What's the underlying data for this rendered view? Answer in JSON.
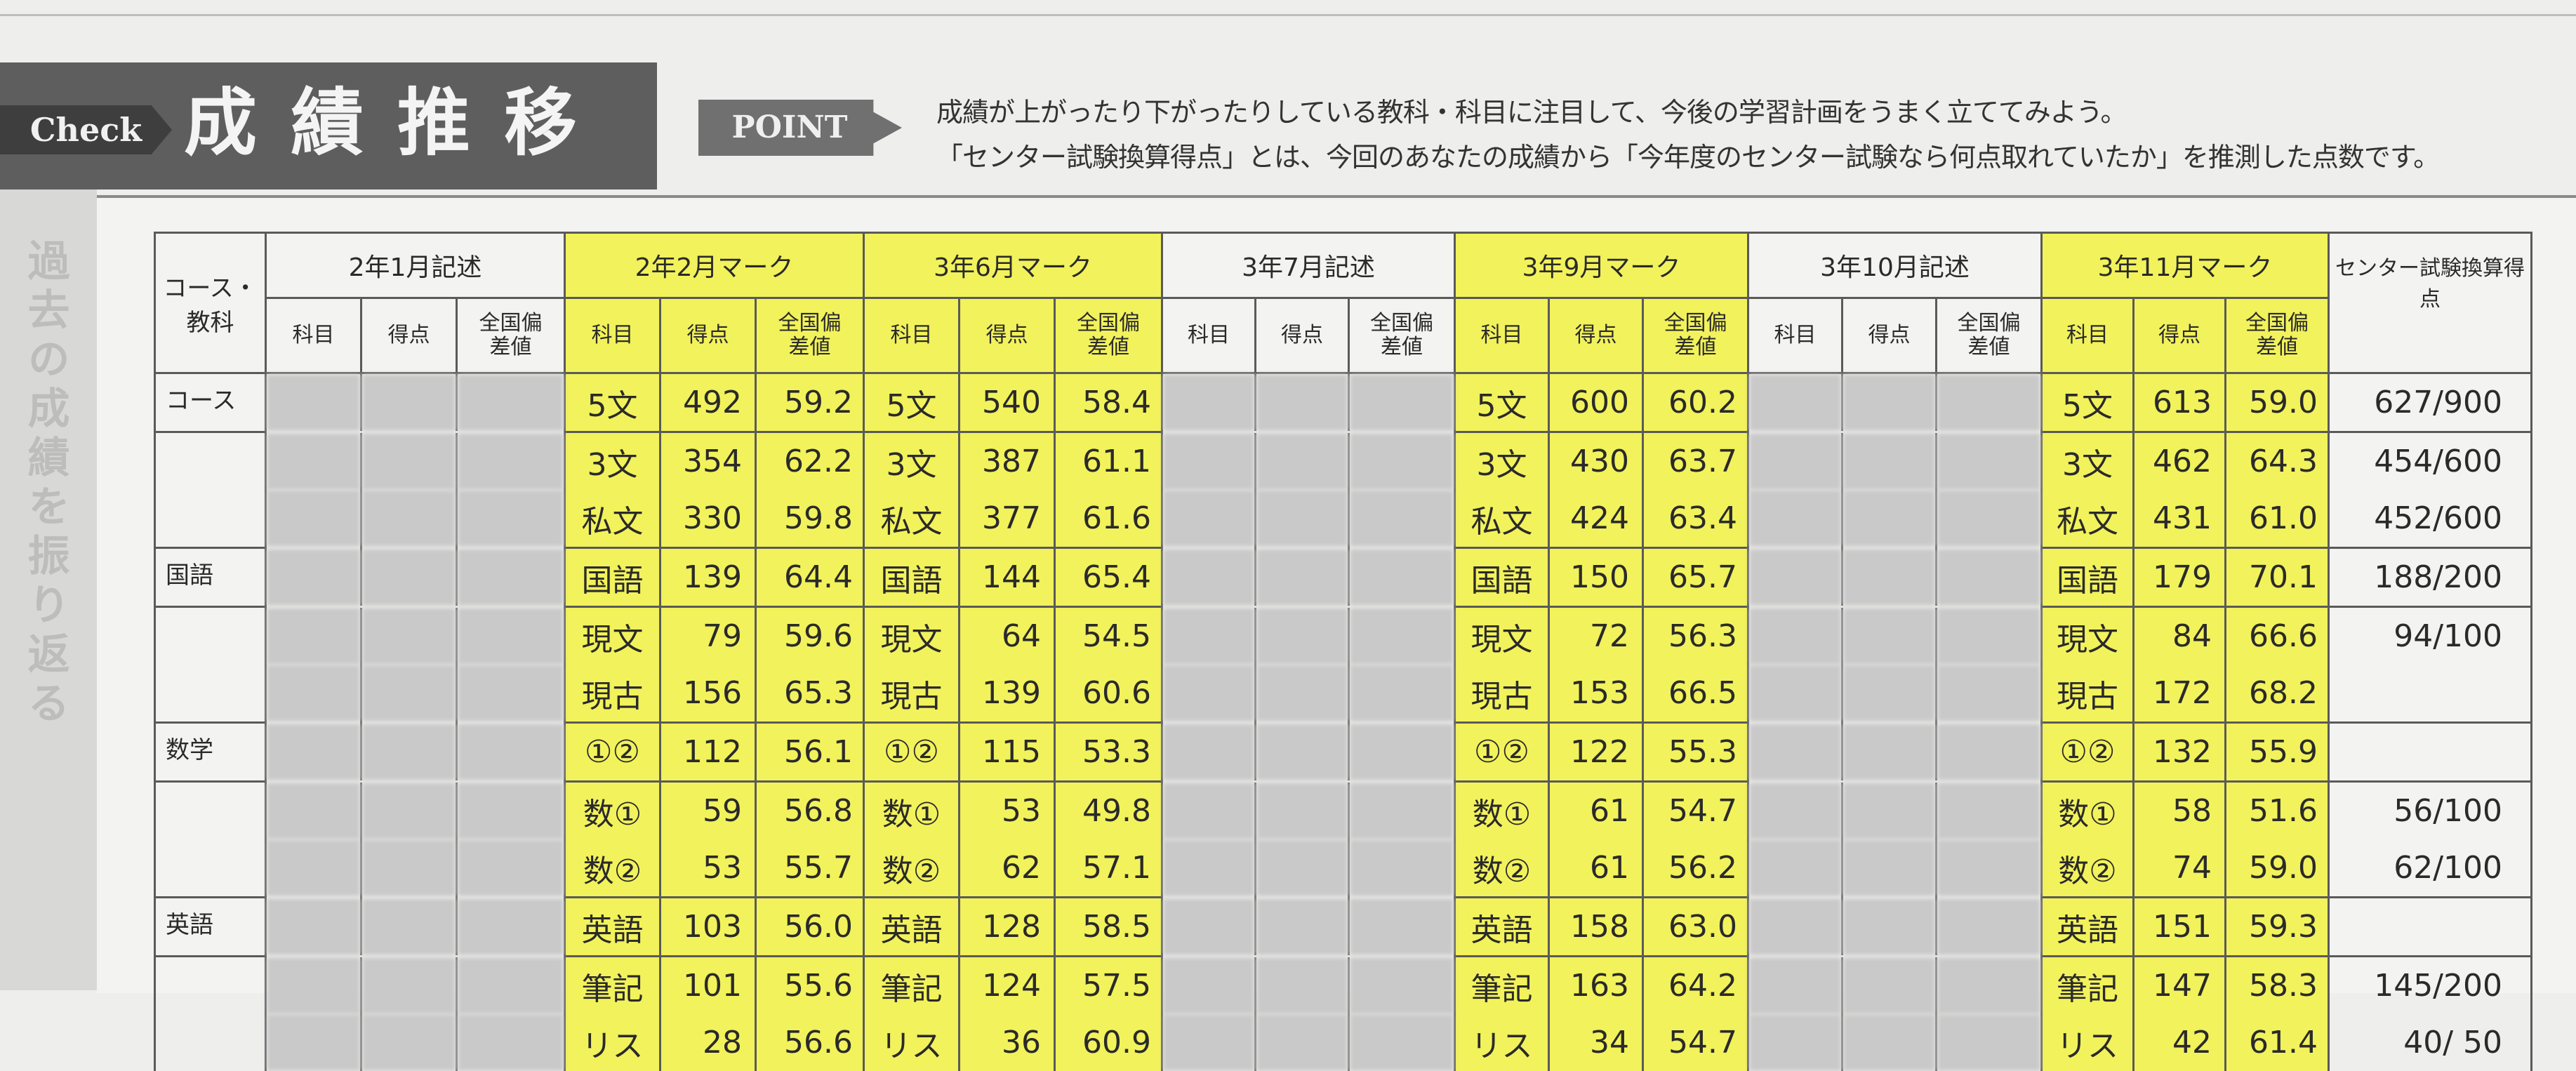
{
  "header": {
    "check_label": "Check",
    "title": "成績推移",
    "point_label": "POINT",
    "point_lines": [
      "成績が上がったり下がったりしている教科・科目に注目して、今後の学習計画をうまく立ててみよう。",
      "「センター試験換算得点」とは、今回のあなたの成績から「今年度のセンター試験なら何点取れていたか」を推測した点数です。"
    ]
  },
  "side_label": "過去の成績を振り返る",
  "colors": {
    "highlight": "#f2f25c",
    "band": "#5e5e5e",
    "paper": "#f3f3f1"
  },
  "table": {
    "course_header": "コース・教科",
    "sub_headers": [
      "科目",
      "得点",
      "全国偏差値"
    ],
    "center_header": "センター試験換算得点",
    "course_labels": [
      "コース",
      "",
      "",
      "国語",
      "",
      "",
      "数学",
      "",
      "",
      "英語",
      "",
      ""
    ],
    "groups": [
      {
        "title": "2年1月記述",
        "highlighted": false,
        "redacted": true,
        "rows": []
      },
      {
        "title": "2年2月マーク",
        "highlighted": true,
        "redacted": false,
        "rows": [
          [
            "5文",
            "492",
            "59.2"
          ],
          [
            "3文",
            "354",
            "62.2"
          ],
          [
            "私文",
            "330",
            "59.8"
          ],
          [
            "国語",
            "139",
            "64.4"
          ],
          [
            "現文",
            "79",
            "59.6"
          ],
          [
            "現古",
            "156",
            "65.3"
          ],
          [
            "①②",
            "112",
            "56.1"
          ],
          [
            "数①",
            "59",
            "56.8"
          ],
          [
            "数②",
            "53",
            "55.7"
          ],
          [
            "英語",
            "103",
            "56.0"
          ],
          [
            "筆記",
            "101",
            "55.6"
          ],
          [
            "リス",
            "28",
            "56.6"
          ]
        ]
      },
      {
        "title": "3年6月マーク",
        "highlighted": true,
        "redacted": false,
        "rows": [
          [
            "5文",
            "540",
            "58.4"
          ],
          [
            "3文",
            "387",
            "61.1"
          ],
          [
            "私文",
            "377",
            "61.6"
          ],
          [
            "国語",
            "144",
            "65.4"
          ],
          [
            "現文",
            "64",
            "54.5"
          ],
          [
            "現古",
            "139",
            "60.6"
          ],
          [
            "①②",
            "115",
            "53.3"
          ],
          [
            "数①",
            "53",
            "49.8"
          ],
          [
            "数②",
            "62",
            "57.1"
          ],
          [
            "英語",
            "128",
            "58.5"
          ],
          [
            "筆記",
            "124",
            "57.5"
          ],
          [
            "リス",
            "36",
            "60.9"
          ]
        ]
      },
      {
        "title": "3年7月記述",
        "highlighted": false,
        "redacted": true,
        "rows": []
      },
      {
        "title": "3年9月マーク",
        "highlighted": true,
        "redacted": false,
        "rows": [
          [
            "5文",
            "600",
            "60.2"
          ],
          [
            "3文",
            "430",
            "63.7"
          ],
          [
            "私文",
            "424",
            "63.4"
          ],
          [
            "国語",
            "150",
            "65.7"
          ],
          [
            "現文",
            "72",
            "56.3"
          ],
          [
            "現古",
            "153",
            "66.5"
          ],
          [
            "①②",
            "122",
            "55.3"
          ],
          [
            "数①",
            "61",
            "54.7"
          ],
          [
            "数②",
            "61",
            "56.2"
          ],
          [
            "英語",
            "158",
            "63.0"
          ],
          [
            "筆記",
            "163",
            "64.2"
          ],
          [
            "リス",
            "34",
            "54.7"
          ]
        ]
      },
      {
        "title": "3年10月記述",
        "highlighted": false,
        "redacted": true,
        "rows": []
      },
      {
        "title": "3年11月マーク",
        "highlighted": true,
        "redacted": false,
        "rows": [
          [
            "5文",
            "613",
            "59.0"
          ],
          [
            "3文",
            "462",
            "64.3"
          ],
          [
            "私文",
            "431",
            "61.0"
          ],
          [
            "国語",
            "179",
            "70.1"
          ],
          [
            "現文",
            "84",
            "66.6"
          ],
          [
            "現古",
            "172",
            "68.2"
          ],
          [
            "①②",
            "132",
            "55.9"
          ],
          [
            "数①",
            "58",
            "51.6"
          ],
          [
            "数②",
            "74",
            "59.0"
          ],
          [
            "英語",
            "151",
            "59.3"
          ],
          [
            "筆記",
            "147",
            "58.3"
          ],
          [
            "リス",
            "42",
            "61.4"
          ]
        ]
      }
    ],
    "center_values": [
      "627/900",
      "454/600",
      "452/600",
      "188/200",
      "94/100",
      "",
      "",
      "56/100",
      "62/100",
      "",
      "145/200",
      "40/ 50"
    ]
  }
}
